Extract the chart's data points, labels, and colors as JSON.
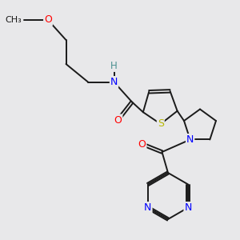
{
  "bg_color": "#e8e8ea",
  "colors": {
    "O": "#ff0000",
    "N": "#0000ff",
    "S": "#b8b800",
    "H": "#4a9090",
    "C": "#1a1a1a"
  },
  "figsize": [
    3.0,
    3.0
  ],
  "dpi": 100,
  "xlim": [
    0,
    6.0
  ],
  "ylim": [
    0,
    6.0
  ]
}
